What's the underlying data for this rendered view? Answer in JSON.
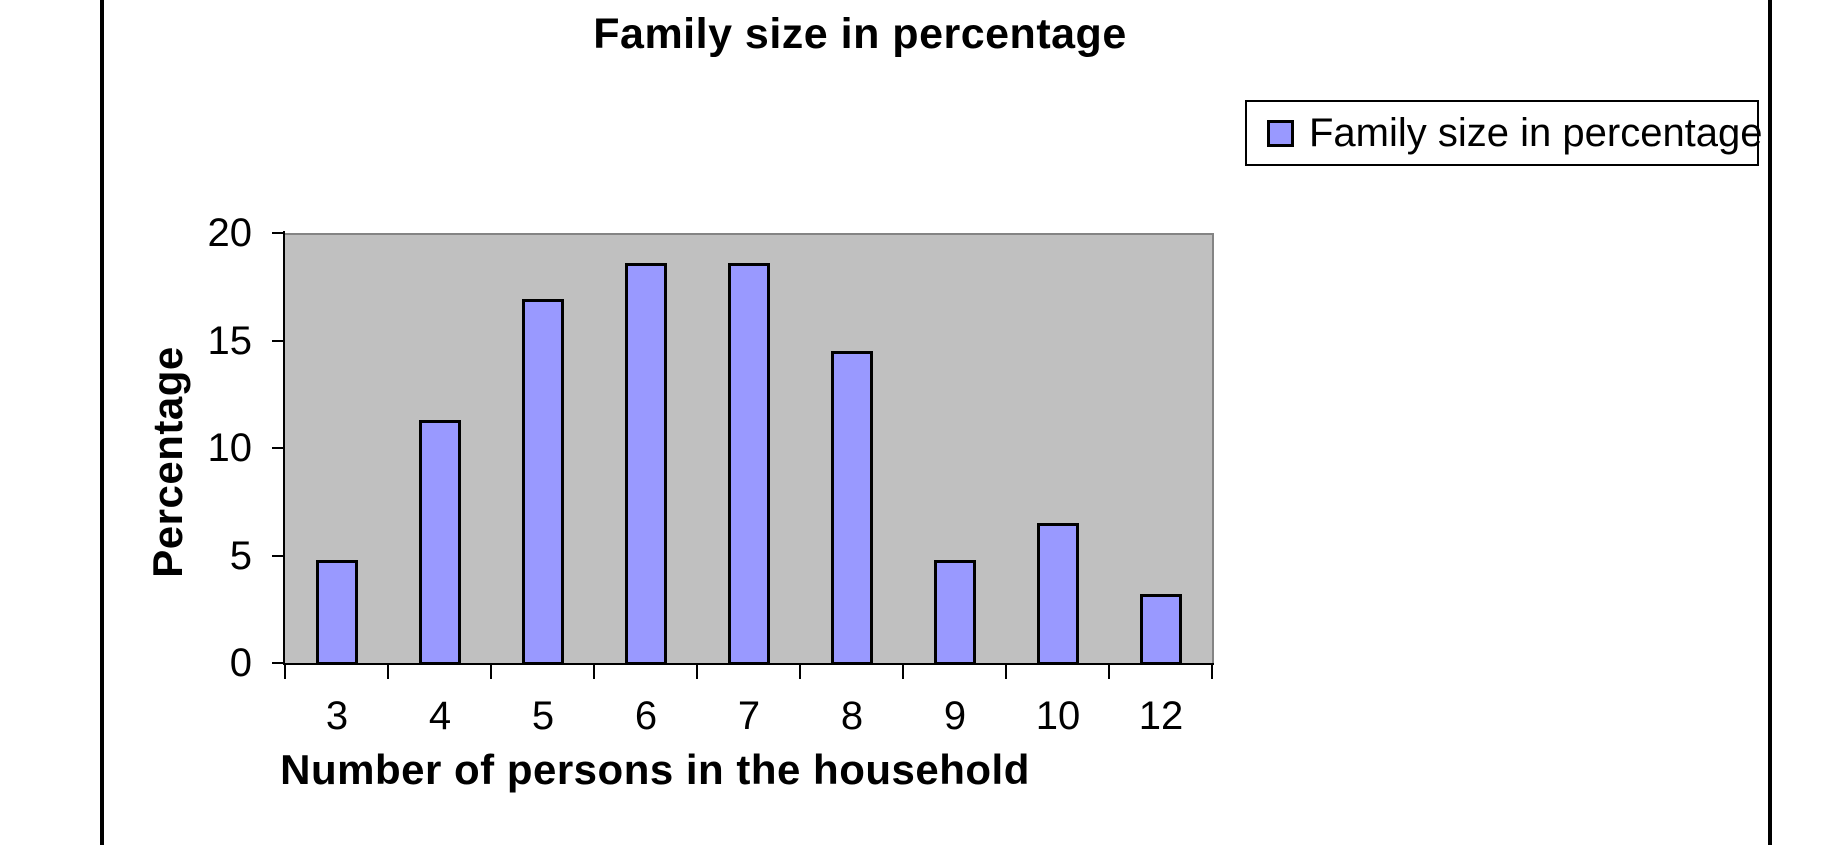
{
  "chart_data": {
    "type": "bar",
    "title": "Family size in percentage",
    "xlabel": "Number of persons in the household",
    "ylabel": "Percentage",
    "categories": [
      "3",
      "4",
      "5",
      "6",
      "7",
      "8",
      "9",
      "10",
      "12"
    ],
    "series": [
      {
        "name": "Family size in percentage",
        "values": [
          4.9,
          11.4,
          17,
          18.7,
          18.7,
          14.6,
          4.9,
          6.6,
          3.3
        ]
      }
    ],
    "ylim": [
      0,
      20
    ],
    "yticks": [
      0,
      5,
      10,
      15,
      20
    ],
    "grid": false,
    "legend": {
      "position": "top-right",
      "entries": [
        "Family size in percentage"
      ]
    },
    "colors": {
      "bar_fill": "#9999FF",
      "bar_border": "#000000",
      "plot_bg": "#C0C0C0",
      "plot_border": "#848484",
      "axis": "#000000",
      "text": "#000000",
      "legend_border": "#000000",
      "frame_line": "#000000",
      "page_bg": "#FFFFFF"
    }
  }
}
